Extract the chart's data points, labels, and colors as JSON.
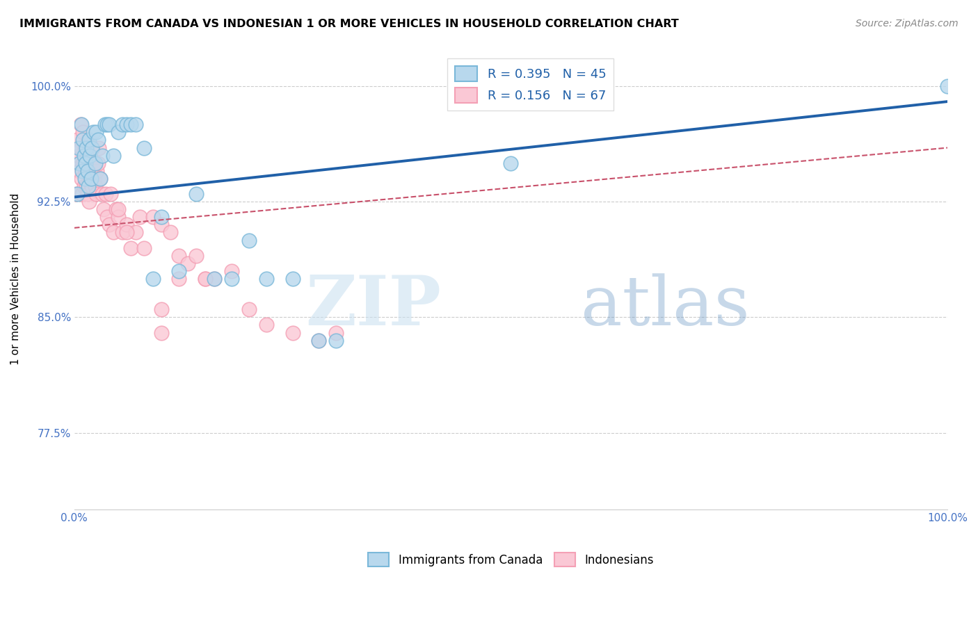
{
  "title": "IMMIGRANTS FROM CANADA VS INDONESIAN 1 OR MORE VEHICLES IN HOUSEHOLD CORRELATION CHART",
  "source": "Source: ZipAtlas.com",
  "ylabel": "1 or more Vehicles in Household",
  "xlim": [
    0.0,
    1.0
  ],
  "ylim": [
    0.725,
    1.025
  ],
  "yticks": [
    0.775,
    0.85,
    0.925,
    1.0
  ],
  "ytick_labels": [
    "77.5%",
    "85.0%",
    "92.5%",
    "100.0%"
  ],
  "xticks": [
    0.0,
    0.1,
    0.2,
    0.3,
    0.4,
    0.5,
    0.6,
    0.7,
    0.8,
    0.9,
    1.0
  ],
  "xtick_labels": [
    "0.0%",
    "",
    "",
    "",
    "",
    "",
    "",
    "",
    "",
    "",
    "100.0%"
  ],
  "canada_R": 0.395,
  "canada_N": 45,
  "indonesian_R": 0.156,
  "indonesian_N": 67,
  "canada_color": "#7ab8d9",
  "canada_color_fill": "#b8d8ed",
  "indonesian_color": "#f4a0b5",
  "indonesian_color_fill": "#fac8d5",
  "trend_canada_color": "#2060a8",
  "trend_indonesian_color": "#c8506a",
  "background_color": "#ffffff",
  "grid_color": "#cccccc",
  "watermark_zip": "ZIP",
  "watermark_atlas": "atlas",
  "canada_x": [
    0.003,
    0.005,
    0.006,
    0.008,
    0.009,
    0.01,
    0.011,
    0.012,
    0.013,
    0.014,
    0.015,
    0.016,
    0.017,
    0.018,
    0.019,
    0.02,
    0.022,
    0.024,
    0.025,
    0.027,
    0.03,
    0.032,
    0.035,
    0.038,
    0.04,
    0.045,
    0.05,
    0.055,
    0.06,
    0.065,
    0.07,
    0.08,
    0.09,
    0.1,
    0.12,
    0.14,
    0.16,
    0.18,
    0.2,
    0.22,
    0.25,
    0.28,
    0.3,
    0.5,
    1.0
  ],
  "canada_y": [
    0.93,
    0.96,
    0.95,
    0.975,
    0.945,
    0.965,
    0.955,
    0.94,
    0.95,
    0.96,
    0.945,
    0.935,
    0.965,
    0.955,
    0.94,
    0.96,
    0.97,
    0.95,
    0.97,
    0.965,
    0.94,
    0.955,
    0.975,
    0.975,
    0.975,
    0.955,
    0.97,
    0.975,
    0.975,
    0.975,
    0.975,
    0.96,
    0.875,
    0.915,
    0.88,
    0.93,
    0.875,
    0.875,
    0.9,
    0.875,
    0.875,
    0.835,
    0.835,
    0.95,
    1.0
  ],
  "indonesian_x": [
    0.002,
    0.003,
    0.004,
    0.005,
    0.006,
    0.007,
    0.007,
    0.008,
    0.009,
    0.01,
    0.01,
    0.011,
    0.012,
    0.012,
    0.013,
    0.014,
    0.015,
    0.015,
    0.016,
    0.017,
    0.018,
    0.019,
    0.02,
    0.021,
    0.022,
    0.023,
    0.024,
    0.025,
    0.026,
    0.027,
    0.028,
    0.03,
    0.032,
    0.034,
    0.036,
    0.038,
    0.04,
    0.042,
    0.045,
    0.048,
    0.05,
    0.055,
    0.06,
    0.065,
    0.07,
    0.075,
    0.08,
    0.09,
    0.1,
    0.11,
    0.12,
    0.13,
    0.14,
    0.15,
    0.16,
    0.18,
    0.2,
    0.22,
    0.25,
    0.28,
    0.3,
    0.05,
    0.06,
    0.1,
    0.1,
    0.12,
    0.15
  ],
  "indonesian_y": [
    0.93,
    0.965,
    0.95,
    0.955,
    0.945,
    0.975,
    0.96,
    0.94,
    0.93,
    0.97,
    0.95,
    0.935,
    0.96,
    0.95,
    0.945,
    0.935,
    0.93,
    0.955,
    0.965,
    0.925,
    0.95,
    0.94,
    0.935,
    0.96,
    0.95,
    0.94,
    0.935,
    0.93,
    0.945,
    0.95,
    0.96,
    0.94,
    0.93,
    0.92,
    0.93,
    0.915,
    0.91,
    0.93,
    0.905,
    0.92,
    0.915,
    0.905,
    0.91,
    0.895,
    0.905,
    0.915,
    0.895,
    0.915,
    0.91,
    0.905,
    0.89,
    0.885,
    0.89,
    0.875,
    0.875,
    0.88,
    0.855,
    0.845,
    0.84,
    0.835,
    0.84,
    0.92,
    0.905,
    0.855,
    0.84,
    0.875,
    0.875
  ]
}
